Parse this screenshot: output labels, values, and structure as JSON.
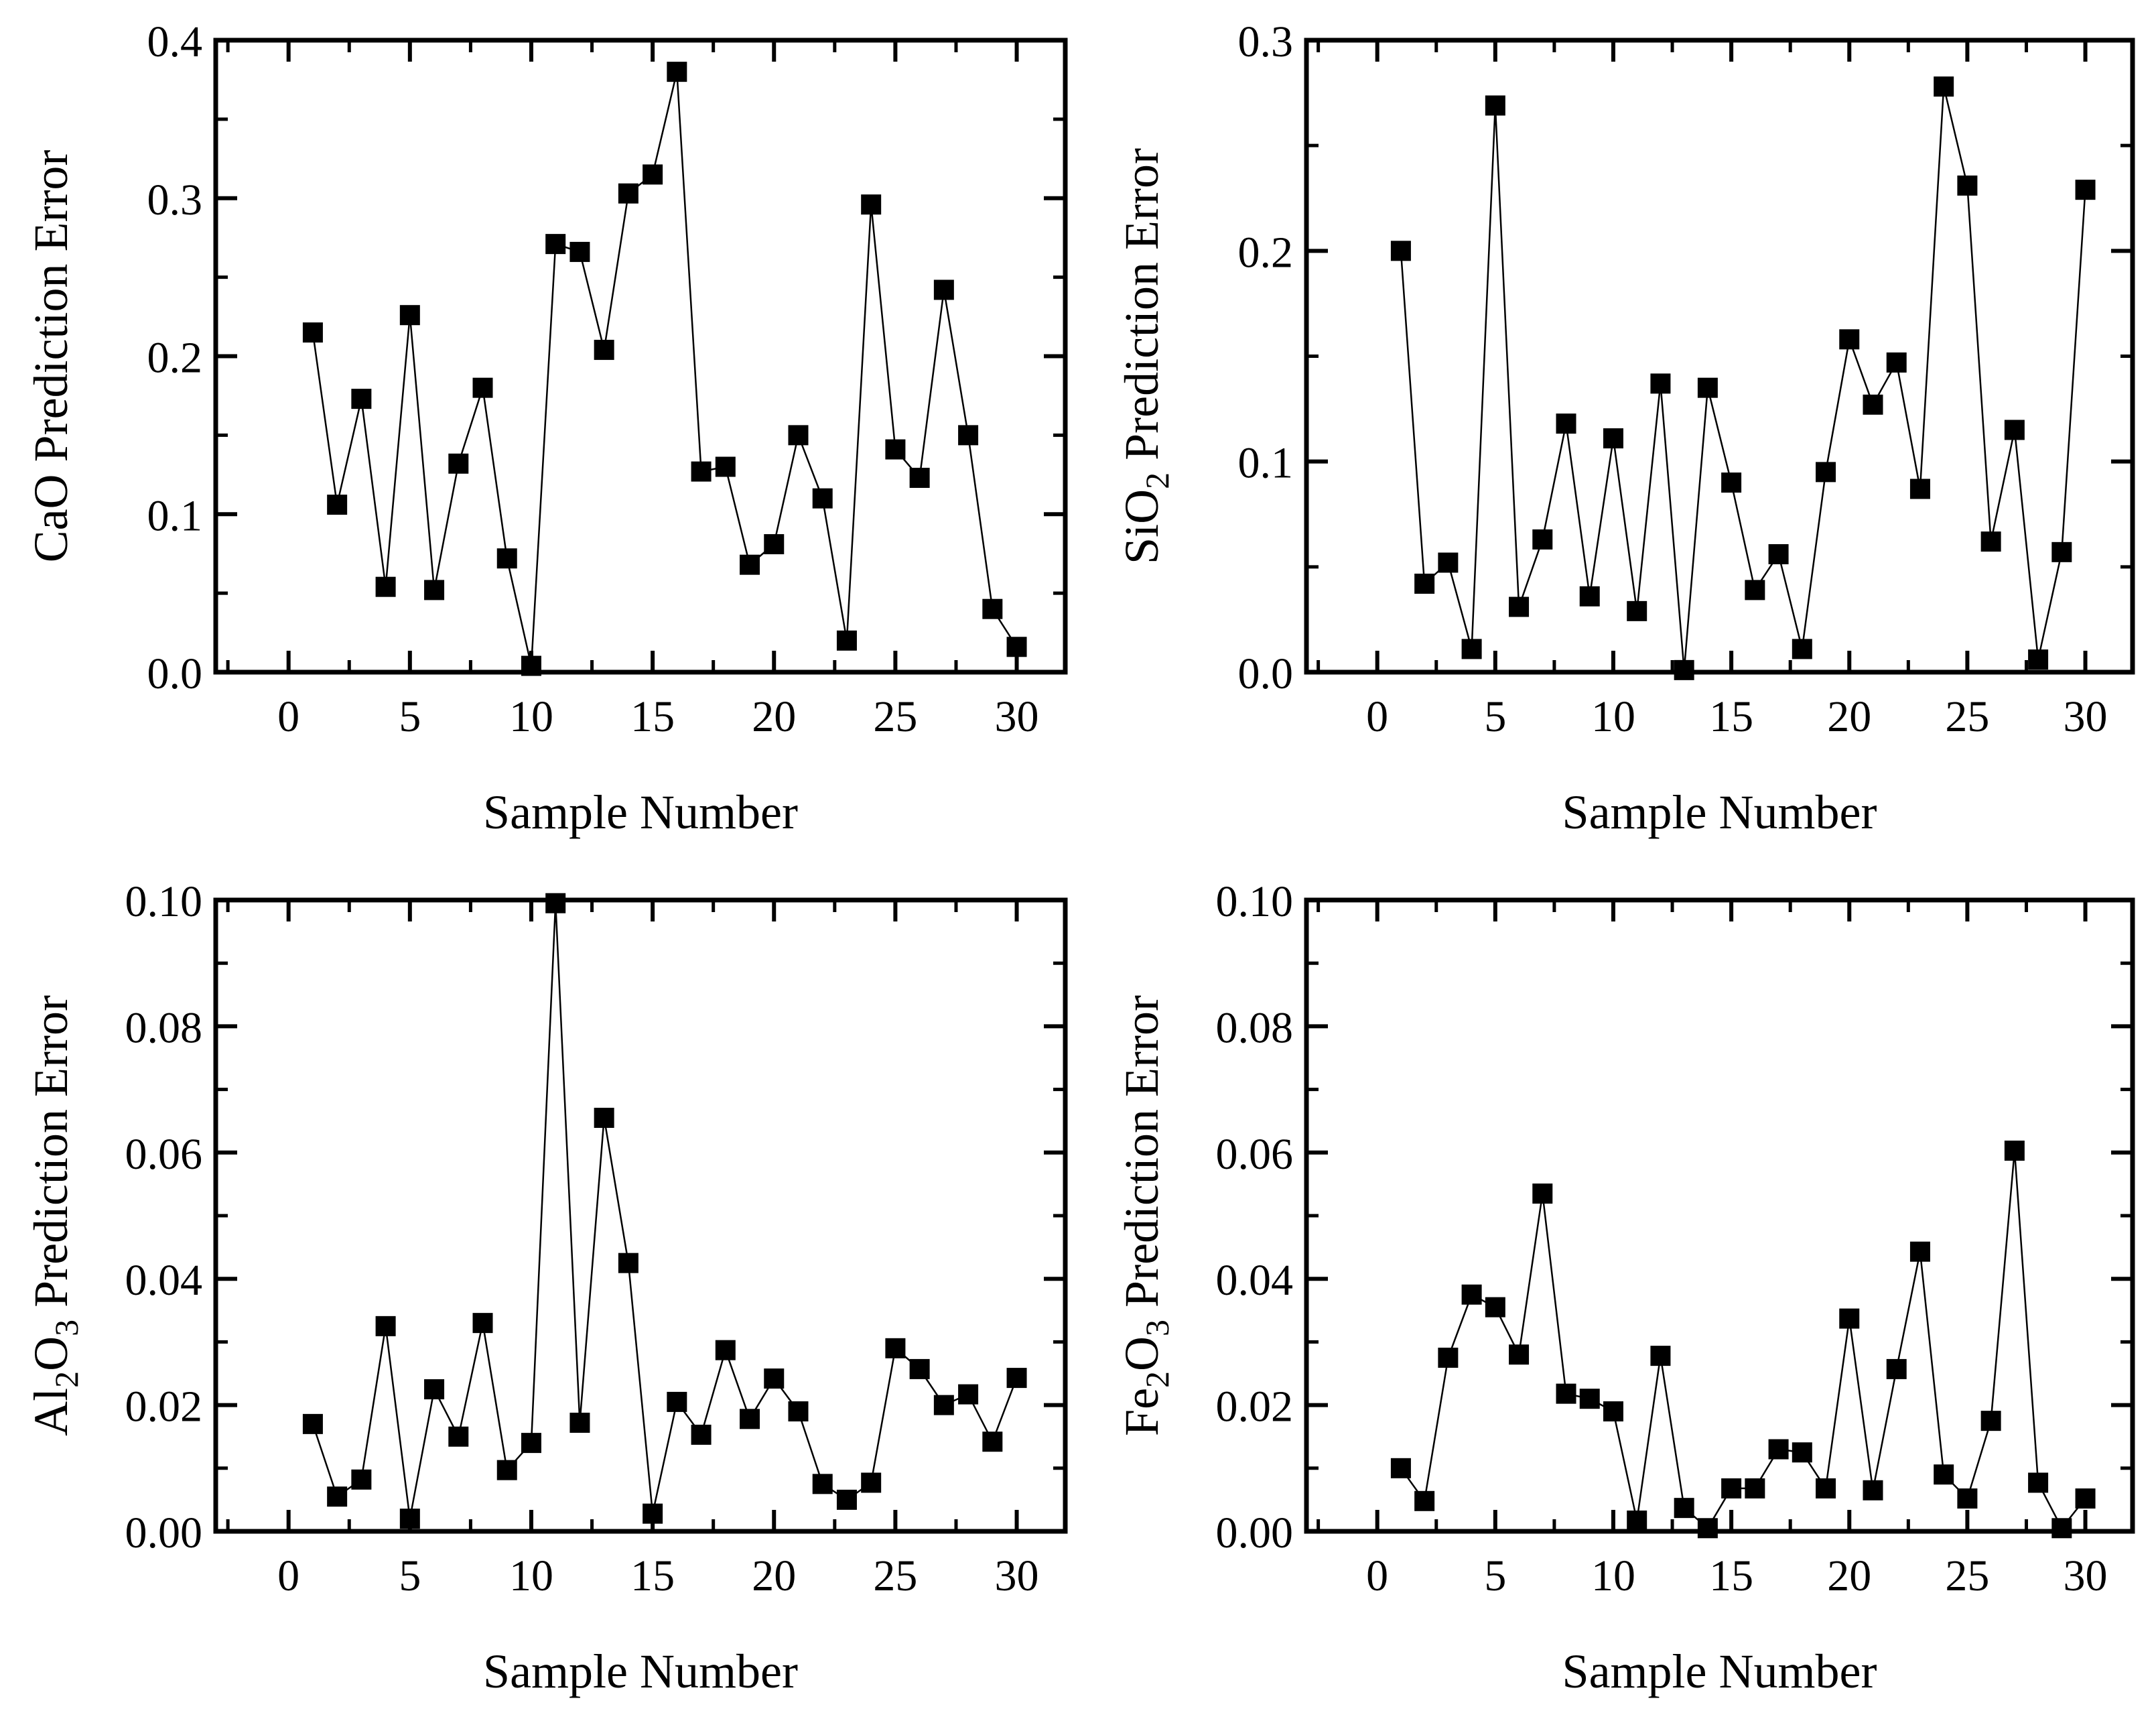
{
  "chart_data": [
    {
      "type": "line",
      "panel": "top-left",
      "xlabel": "Sample Number",
      "ylabel": {
        "pre": "CaO Prediction Error",
        "sub": "",
        "post": ""
      },
      "xlim": [
        -3,
        32
      ],
      "ylim": [
        0,
        0.4
      ],
      "xticks": [
        0,
        5,
        10,
        15,
        20,
        25,
        30
      ],
      "xtick_labels": [
        "0",
        "5",
        "10",
        "15",
        "20",
        "25",
        "30"
      ],
      "yticks": [
        0,
        0.1,
        0.2,
        0.3,
        0.4
      ],
      "ytick_labels": [
        "0.0",
        "0.1",
        "0.2",
        "0.3",
        "0.4"
      ],
      "x": [
        1,
        2,
        3,
        4,
        5,
        6,
        7,
        8,
        9,
        10,
        11,
        12,
        13,
        14,
        15,
        16,
        17,
        18,
        19,
        20,
        21,
        22,
        23,
        24,
        25,
        26,
        27,
        28,
        29,
        30
      ],
      "values": [
        0.215,
        0.106,
        0.173,
        0.054,
        0.226,
        0.052,
        0.132,
        0.18,
        0.072,
        0.004,
        0.271,
        0.266,
        0.204,
        0.303,
        0.315,
        0.38,
        0.127,
        0.13,
        0.068,
        0.081,
        0.15,
        0.11,
        0.02,
        0.296,
        0.141,
        0.123,
        0.242,
        0.15,
        0.04,
        0.016
      ]
    },
    {
      "type": "line",
      "panel": "top-right",
      "xlabel": "Sample Number",
      "ylabel": {
        "pre": "SiO",
        "sub": "2",
        "post": " Prediction Error"
      },
      "xlim": [
        -3,
        32
      ],
      "ylim": [
        0,
        0.3
      ],
      "xticks": [
        0,
        5,
        10,
        15,
        20,
        25,
        30
      ],
      "xtick_labels": [
        "0",
        "5",
        "10",
        "15",
        "20",
        "25",
        "30"
      ],
      "yticks": [
        0,
        0.1,
        0.2,
        0.3
      ],
      "ytick_labels": [
        "0.0",
        "0.1",
        "0.2",
        "0.3"
      ],
      "x": [
        1,
        2,
        3,
        4,
        5,
        6,
        7,
        8,
        9,
        10,
        11,
        12,
        13,
        14,
        15,
        16,
        17,
        18,
        19,
        20,
        21,
        22,
        23,
        24,
        25,
        26,
        27,
        28,
        29,
        30
      ],
      "values": [
        0.2,
        0.042,
        0.052,
        0.011,
        0.269,
        0.031,
        0.063,
        0.118,
        0.036,
        0.111,
        0.029,
        0.137,
        0.001,
        0.135,
        0.09,
        0.039,
        0.056,
        0.011,
        0.095,
        0.158,
        0.127,
        0.147,
        0.087,
        0.278,
        0.231,
        0.062,
        0.115,
        0.006,
        0.057,
        0.229
      ]
    },
    {
      "type": "line",
      "panel": "bottom-left",
      "xlabel": "Sample Number",
      "ylabel": {
        "pre": "Al",
        "sub": "2",
        "post": "O",
        "sub2": "3",
        "post2": " Prediction Error"
      },
      "xlim": [
        -3,
        32
      ],
      "ylim": [
        0,
        0.1
      ],
      "xticks": [
        0,
        5,
        10,
        15,
        20,
        25,
        30
      ],
      "xtick_labels": [
        "0",
        "5",
        "10",
        "15",
        "20",
        "25",
        "30"
      ],
      "yticks": [
        0,
        0.02,
        0.04,
        0.06,
        0.08,
        0.1
      ],
      "ytick_labels": [
        "0.00",
        "0.02",
        "0.04",
        "0.06",
        "0.08",
        "0.10"
      ],
      "x": [
        1,
        2,
        3,
        4,
        5,
        6,
        7,
        8,
        9,
        10,
        11,
        12,
        13,
        14,
        15,
        16,
        17,
        18,
        19,
        20,
        21,
        22,
        23,
        24,
        25,
        26,
        27,
        28,
        29,
        30
      ],
      "values": [
        0.017,
        0.0055,
        0.0082,
        0.0325,
        0.002,
        0.0225,
        0.015,
        0.033,
        0.0097,
        0.014,
        0.0995,
        0.0172,
        0.0655,
        0.0425,
        0.0028,
        0.0205,
        0.0153,
        0.0287,
        0.0178,
        0.0242,
        0.019,
        0.0075,
        0.005,
        0.0077,
        0.029,
        0.0257,
        0.02,
        0.0217,
        0.0142,
        0.0243
      ]
    },
    {
      "type": "line",
      "panel": "bottom-right",
      "xlabel": "Sample Number",
      "ylabel": {
        "pre": "Fe",
        "sub": "2",
        "post": "O",
        "sub2": "3",
        "post2": " Prediction Error"
      },
      "xlim": [
        -3,
        32
      ],
      "ylim": [
        0,
        0.1
      ],
      "xticks": [
        0,
        5,
        10,
        15,
        20,
        25,
        30
      ],
      "xtick_labels": [
        "0",
        "5",
        "10",
        "15",
        "20",
        "25",
        "30"
      ],
      "yticks": [
        0,
        0.02,
        0.04,
        0.06,
        0.08,
        0.1
      ],
      "ytick_labels": [
        "0.00",
        "0.02",
        "0.04",
        "0.06",
        "0.08",
        "0.10"
      ],
      "x": [
        1,
        2,
        3,
        4,
        5,
        6,
        7,
        8,
        9,
        10,
        11,
        12,
        13,
        14,
        15,
        16,
        17,
        18,
        19,
        20,
        21,
        22,
        23,
        24,
        25,
        26,
        27,
        28,
        29,
        30
      ],
      "values": [
        0.01,
        0.0048,
        0.0275,
        0.0375,
        0.0355,
        0.028,
        0.0535,
        0.0218,
        0.021,
        0.019,
        0.0017,
        0.0278,
        0.0037,
        0.0005,
        0.0068,
        0.0068,
        0.013,
        0.0125,
        0.0068,
        0.0337,
        0.0065,
        0.0257,
        0.0443,
        0.009,
        0.0052,
        0.0175,
        0.0603,
        0.0077,
        0.0005,
        0.0052
      ]
    }
  ],
  "colors": {
    "line": "#000000",
    "marker": "#000000",
    "background": "#ffffff"
  }
}
